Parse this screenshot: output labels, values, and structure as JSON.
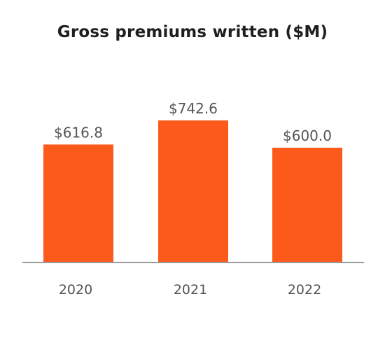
{
  "chart_data": {
    "type": "bar",
    "title": "Gross premiums written ($M)",
    "categories": [
      "2020",
      "2021",
      "2022"
    ],
    "values": [
      616.8,
      742.6,
      600.0
    ],
    "data_labels": [
      "$616.8",
      "$742.6",
      "$600.0"
    ],
    "xlabel": "",
    "ylabel": "",
    "ylim": [
      0,
      742.6
    ],
    "grid": false,
    "legend": "none",
    "colors": {
      "bar": "#fc5a1b",
      "axis": "#9a9a9a",
      "title": "#1f1f1f",
      "labels": "#555555"
    }
  }
}
